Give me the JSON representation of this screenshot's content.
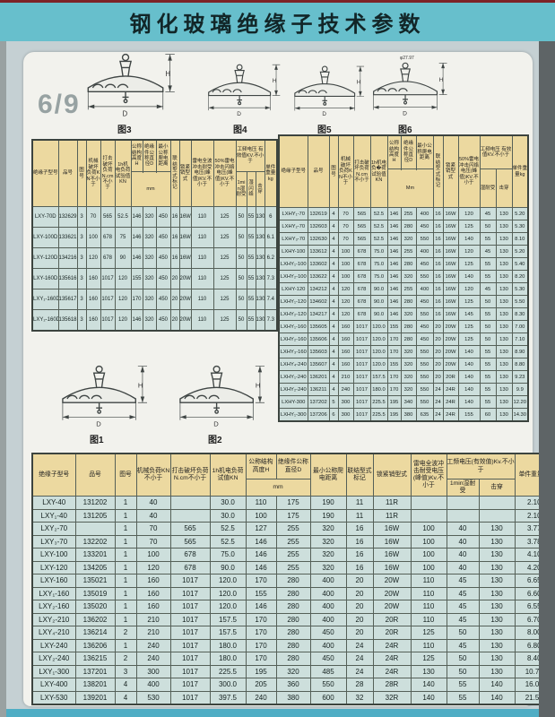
{
  "page": {
    "title": "钢化玻璃绝缘子技术参数",
    "page_number": "6/9",
    "dim_h": "H",
    "dim_d": "D",
    "fig_labels": {
      "f1": "图1",
      "f2": "图2",
      "f3": "图3",
      "f4": "图4",
      "f5": "图5",
      "f6": "图6"
    },
    "fig6_annotation": "φ27.97"
  },
  "colors": {
    "top_red": "#7d2327",
    "band_teal": "#67bfcc",
    "header_cream": "#ecd9a0",
    "cell_blue": "#cddfdc",
    "bottom_strip_teal": "#4fadc4"
  },
  "left_table": {
    "headers": {
      "model": "绝缘子型号",
      "item_no": "品号",
      "fig_no": "图号",
      "mech_load": "机械破坏负荷KN不小于",
      "impact_load": "打击破坏负荷N.cm不小于",
      "test_1h": "1h机电负荷试验值KN",
      "height_h": "公称结构高度H",
      "dia_d": "绝缘件公称直径D",
      "creepage": "最小公称爬电距离",
      "unit": "mm",
      "conn_type": "联结型式标记",
      "pin_type": "锁紧销型式",
      "lightning": "雷电全波冲击耐受电压(峰值)KV.不小于",
      "flashover50": "50%雷电冲击闪络电压(峰值)KV.不小于",
      "power_freq": "工频电压 有效值KV.不小于",
      "wet_1min": "1min湿耐受",
      "wet_flash": "湿闪络",
      "puncture": "击穿",
      "weight": "单件重量kg"
    },
    "rows": [
      [
        "LXY-70D",
        "132629",
        "3",
        "70",
        "565",
        "52.5",
        "146",
        "320",
        "450",
        "16",
        "16W",
        "110",
        "125",
        "50",
        "55",
        "130",
        "6"
      ],
      [
        "LXY-100D",
        "133621",
        "3",
        "100",
        "678",
        "75",
        "146",
        "320",
        "450",
        "16",
        "16W",
        "110",
        "125",
        "50",
        "55",
        "130",
        "6.1"
      ],
      [
        "LXY-120D",
        "134216",
        "3",
        "120",
        "678",
        "90",
        "146",
        "320",
        "450",
        "16",
        "16W",
        "110",
        "125",
        "50",
        "55",
        "130",
        "6.2"
      ],
      [
        "LXY-160D",
        "135616",
        "3",
        "160",
        "1017",
        "120",
        "155",
        "320",
        "450",
        "20",
        "20W",
        "110",
        "125",
        "50",
        "55",
        "130",
        "7.3"
      ],
      [
        "LXY₁-160D",
        "135617",
        "3",
        "160",
        "1017",
        "120",
        "170",
        "320",
        "450",
        "20",
        "20W",
        "110",
        "125",
        "50",
        "55",
        "130",
        "7.4"
      ],
      [
        "LXY₂-160D",
        "135618",
        "3",
        "160",
        "1017",
        "120",
        "146",
        "320",
        "450",
        "20",
        "20W",
        "110",
        "125",
        "50",
        "55",
        "130",
        "7.3"
      ]
    ]
  },
  "right_table": {
    "headers": {
      "model": "绝缘子型号",
      "item_no": "品号",
      "fig_no": "图号",
      "mech_load": "机械破坏负荷KN不小于",
      "impact_load": "打击破坏负荷N.cm不小于",
      "test_1h": "1h机电负�荷试验值KN",
      "height_h": "公称结构高度H",
      "dia_d": "绝缘件公称直径D",
      "creepage": "最小公称爬电距离",
      "unit": "Mm",
      "conn_type": "联结型式标记",
      "pin_type": "锁紧销型式",
      "flashover50": "50%雷电冲击闪络电压(峰值)KV.不小于",
      "power_freq": "工频电压 有效值KV.不小于",
      "wet": "湿耐受",
      "puncture": "击穿",
      "weight": "单件重量kg"
    },
    "rows": [
      [
        "LXHY₁-70",
        "132619",
        "4",
        "70",
        "565",
        "52.5",
        "146",
        "255",
        "400",
        "16",
        "16W",
        "120",
        "45",
        "130",
        "5.20"
      ],
      [
        "LXHY₂-70",
        "132603",
        "4",
        "70",
        "565",
        "52.5",
        "146",
        "280",
        "450",
        "16",
        "16W",
        "125",
        "50",
        "130",
        "5.30"
      ],
      [
        "LXHY₃-70",
        "132630",
        "4",
        "70",
        "565",
        "52.5",
        "146",
        "320",
        "550",
        "16",
        "16W",
        "140",
        "55",
        "130",
        "8.10"
      ],
      [
        "LXHY-100",
        "133612",
        "4",
        "100",
        "678",
        "75.0",
        "146",
        "255",
        "400",
        "16",
        "16W",
        "120",
        "45",
        "130",
        "5.20"
      ],
      [
        "LXHY₁-100",
        "133602",
        "4",
        "100",
        "678",
        "75.0",
        "146",
        "280",
        "450",
        "16",
        "16W",
        "125",
        "55",
        "130",
        "5.40"
      ],
      [
        "LXHY₂-100",
        "133622",
        "4",
        "100",
        "678",
        "75.0",
        "146",
        "320",
        "550",
        "16",
        "16W",
        "140",
        "55",
        "130",
        "8.20"
      ],
      [
        "LXHY-120",
        "134212",
        "4",
        "120",
        "678",
        "90.0",
        "146",
        "255",
        "400",
        "16",
        "16W",
        "120",
        "45",
        "130",
        "5.30"
      ],
      [
        "LXHY₁-120",
        "134602",
        "4",
        "120",
        "678",
        "90.0",
        "146",
        "280",
        "450",
        "16",
        "16W",
        "125",
        "50",
        "130",
        "5.50"
      ],
      [
        "LXHY₂-120",
        "134217",
        "4",
        "120",
        "678",
        "90.0",
        "146",
        "320",
        "550",
        "16",
        "16W",
        "145",
        "55",
        "130",
        "8.30"
      ],
      [
        "LXHY₁-160",
        "135605",
        "4",
        "160",
        "1017",
        "120.0",
        "155",
        "280",
        "450",
        "20",
        "20W",
        "125",
        "50",
        "130",
        "7.00"
      ],
      [
        "LXHY₂-160",
        "135606",
        "4",
        "160",
        "1017",
        "120.0",
        "170",
        "280",
        "450",
        "20",
        "20W",
        "125",
        "50",
        "130",
        "7.10"
      ],
      [
        "LXHY₃-160",
        "135603",
        "4",
        "160",
        "1017",
        "120.0",
        "170",
        "320",
        "550",
        "20",
        "20W",
        "140",
        "55",
        "130",
        "8.90"
      ],
      [
        "LXHY₄-240",
        "135607",
        "4",
        "160",
        "1017",
        "120.0",
        "155",
        "320",
        "550",
        "20",
        "20W",
        "140",
        "55",
        "130",
        "8.80"
      ],
      [
        "LXHY₁-240",
        "136201",
        "4",
        "210",
        "1017",
        "157.5",
        "170",
        "320",
        "550",
        "20",
        "20R",
        "140",
        "55",
        "130",
        "9.23"
      ],
      [
        "LXHY₂-240",
        "136211",
        "4",
        "240",
        "1017",
        "180.0",
        "170",
        "320",
        "550",
        "24",
        "24R",
        "140",
        "55",
        "130",
        "9.9"
      ],
      [
        "LXHY-300",
        "137202",
        "5",
        "300",
        "1017",
        "225.5",
        "195",
        "340",
        "550",
        "24",
        "24R",
        "140",
        "55",
        "130",
        "12.20"
      ],
      [
        "LXHY₁-300",
        "137206",
        "6",
        "300",
        "1017",
        "225.5",
        "195",
        "380",
        "635",
        "24",
        "24R",
        "155",
        "60",
        "130",
        "14.30"
      ]
    ]
  },
  "bottom_table": {
    "headers": {
      "model": "绝缘子型号",
      "item_no": "品号",
      "fig_no": "图号",
      "mech_load": "机械负荷KN不小于",
      "impact_load": "打击破坏负荷N.cm不小于",
      "test_1h": "1h机电负荷试值KN",
      "height_h": "公称结构高度H",
      "dia_d": "绝缘件公称直径D",
      "creepage": "最小公称爬电距离",
      "unit": "mm",
      "conn_type": "联结型式标记",
      "pin_type": "锁紧销型式",
      "lightning": "雷电全波冲击耐受电压(峰值)Kv.不小于",
      "power_freq": "工频电压(有效值)Kv.不小于",
      "wet_1min": "1min湿耐受",
      "puncture": "击穿",
      "weight": "单件重量kg"
    },
    "rows": [
      [
        "LXY-40",
        "131202",
        "1",
        "40",
        "",
        "30.0",
        "110",
        "175",
        "190",
        "11",
        "11R",
        "",
        "",
        "",
        "2.10"
      ],
      [
        "LXY₁-40",
        "131205",
        "1",
        "40",
        "",
        "30.0",
        "100",
        "175",
        "190",
        "11",
        "11R",
        "",
        "",
        "",
        "2.10"
      ],
      [
        "LXY₂-70",
        "",
        "1",
        "70",
        "565",
        "52.5",
        "127",
        "255",
        "320",
        "16",
        "16W",
        "100",
        "40",
        "130",
        "3.77"
      ],
      [
        "LXY₃-70",
        "132202",
        "1",
        "70",
        "565",
        "52.5",
        "146",
        "255",
        "320",
        "16",
        "16W",
        "100",
        "40",
        "130",
        "3.78"
      ],
      [
        "LXY-100",
        "133201",
        "1",
        "100",
        "678",
        "75.0",
        "146",
        "255",
        "320",
        "16",
        "16W",
        "100",
        "40",
        "130",
        "4.10"
      ],
      [
        "LXY-120",
        "134205",
        "1",
        "120",
        "678",
        "90.0",
        "146",
        "255",
        "320",
        "16",
        "16W",
        "100",
        "40",
        "130",
        "4.20"
      ],
      [
        "LXY-160",
        "135021",
        "1",
        "160",
        "1017",
        "120.0",
        "170",
        "280",
        "400",
        "20",
        "20W",
        "110",
        "45",
        "130",
        "6.65"
      ],
      [
        "LXY₁-160",
        "135019",
        "1",
        "160",
        "1017",
        "120.0",
        "155",
        "280",
        "400",
        "20",
        "20W",
        "110",
        "45",
        "130",
        "6.60"
      ],
      [
        "LXY₂-160",
        "135020",
        "1",
        "160",
        "1017",
        "120.0",
        "146",
        "280",
        "400",
        "20",
        "20W",
        "110",
        "45",
        "130",
        "6.55"
      ],
      [
        "LXY₂-210",
        "136202",
        "1",
        "210",
        "1017",
        "157.5",
        "170",
        "280",
        "400",
        "20",
        "20R",
        "110",
        "45",
        "130",
        "6.70"
      ],
      [
        "LXY₄-210",
        "136214",
        "2",
        "210",
        "1017",
        "157.5",
        "170",
        "280",
        "450",
        "20",
        "20R",
        "125",
        "50",
        "130",
        "8.00"
      ],
      [
        "LXY-240",
        "136206",
        "1",
        "240",
        "1017",
        "180.0",
        "170",
        "280",
        "400",
        "24",
        "24R",
        "110",
        "45",
        "130",
        "6.80"
      ],
      [
        "LXY₂-240",
        "136215",
        "2",
        "240",
        "1017",
        "180.0",
        "170",
        "280",
        "450",
        "24",
        "24R",
        "125",
        "50",
        "130",
        "8.40"
      ],
      [
        "LXY₁-300",
        "137201",
        "3",
        "300",
        "1017",
        "225.5",
        "195",
        "320",
        "485",
        "24",
        "24R",
        "130",
        "50",
        "130",
        "10.70"
      ],
      [
        "LXY-400",
        "138201",
        "4",
        "400",
        "1017",
        "300.0",
        "205",
        "360",
        "550",
        "28",
        "28R",
        "140",
        "55",
        "140",
        "16.00"
      ],
      [
        "LXY-530",
        "139201",
        "4",
        "530",
        "1017",
        "397.5",
        "240",
        "380",
        "600",
        "32",
        "32R",
        "140",
        "55",
        "140",
        "21.50"
      ]
    ]
  }
}
